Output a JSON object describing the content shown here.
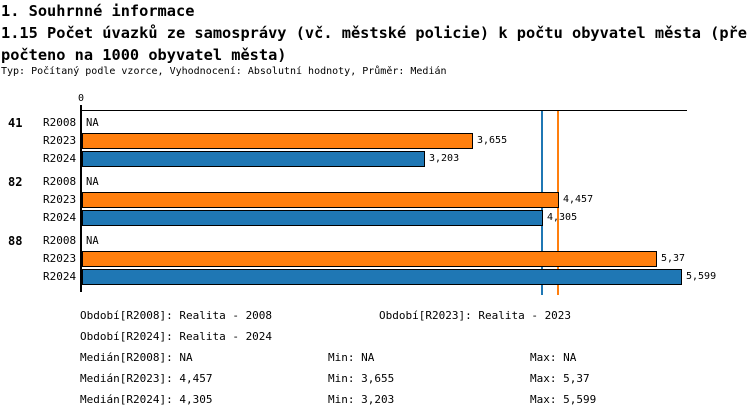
{
  "header": {
    "line1": "1. Souhrnné informace",
    "line2": "1.15 Počet úvazků ze samosprávy (vč. městské policie) k počtu obyvatel města (pře",
    "line3": "počteno na 1000 obyvatel města)",
    "subtitle": "Typ: Počítaný podle vzorce, Vyhodnocení: Absolutní hodnoty, Průměr: Medián"
  },
  "chart_data": {
    "type": "bar",
    "orientation": "horizontal",
    "title": "1.15 Počet úvazků ze samosprávy (vč. městské policie) k počtu obyvatel města (přepočteno na 1000 obyvatel města)",
    "axis": {
      "zero_label": "0",
      "xlim": [
        0,
        5.65
      ],
      "grid": false
    },
    "series_colors": {
      "R2008": null,
      "R2023": "#FF7F0E",
      "R2024": "#1F77B4"
    },
    "groups": [
      {
        "label": "41",
        "bars": [
          {
            "series": "R2008",
            "value": null,
            "display": "NA"
          },
          {
            "series": "R2023",
            "value": 3.655,
            "display": "3,655"
          },
          {
            "series": "R2024",
            "value": 3.203,
            "display": "3,203"
          }
        ]
      },
      {
        "label": "82",
        "bars": [
          {
            "series": "R2008",
            "value": null,
            "display": "NA"
          },
          {
            "series": "R2023",
            "value": 4.457,
            "display": "4,457"
          },
          {
            "series": "R2024",
            "value": 4.305,
            "display": "4,305"
          }
        ]
      },
      {
        "label": "88",
        "bars": [
          {
            "series": "R2008",
            "value": null,
            "display": "NA"
          },
          {
            "series": "R2023",
            "value": 5.37,
            "display": "5,37"
          },
          {
            "series": "R2024",
            "value": 5.599,
            "display": "5,599"
          }
        ]
      }
    ],
    "median_lines": [
      {
        "series": "R2024",
        "value": 4.305,
        "color": "#1F77B4"
      },
      {
        "series": "R2023",
        "value": 4.457,
        "color": "#FF7F0E"
      }
    ]
  },
  "legend": {
    "rows": [
      [
        "Období[R2008]: Realita - 2008",
        "Období[R2023]: Realita - 2023"
      ],
      [
        "Období[R2024]: Realita - 2024"
      ],
      [
        "Medián[R2008]: NA",
        "Min: NA",
        "Max: NA"
      ],
      [
        "Medián[R2023]: 4,457",
        "Min: 3,655",
        "Max: 5,37"
      ],
      [
        "Medián[R2024]: 4,305",
        "Min: 3,203",
        "Max: 5,599"
      ]
    ]
  }
}
